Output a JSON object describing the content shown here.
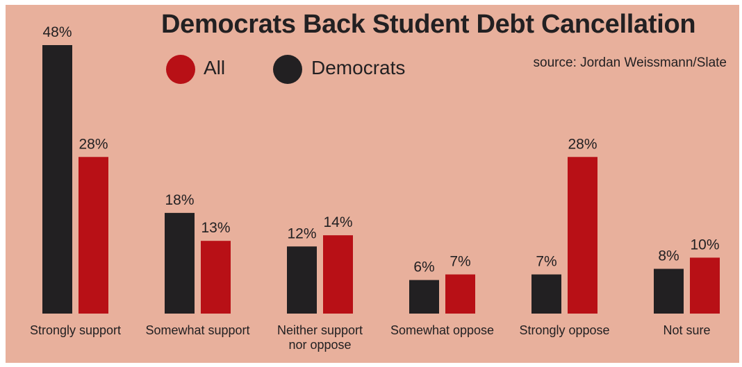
{
  "title": "Democrats Back Student Debt Cancellation",
  "source": "source: Jordan Weissmann/Slate",
  "legend": [
    {
      "label": "All",
      "color": "#b81016"
    },
    {
      "label": "Democrats",
      "color": "#222022"
    }
  ],
  "chart_data": {
    "type": "bar",
    "categories": [
      [
        "Strongly support"
      ],
      [
        "Somewhat support"
      ],
      [
        "Neither support",
        "nor oppose"
      ],
      [
        "Somewhat oppose"
      ],
      [
        "Strongly oppose"
      ],
      [
        "Not sure"
      ]
    ],
    "series": [
      {
        "name": "Democrats",
        "color": "#222022",
        "values": [
          48,
          18,
          12,
          6,
          7,
          8
        ],
        "labels": [
          "48%",
          "18%",
          "12%",
          "6%",
          "7%",
          "8%"
        ]
      },
      {
        "name": "All",
        "color": "#b81016",
        "values": [
          28,
          13,
          14,
          7,
          28,
          10
        ],
        "labels": [
          "28%",
          "13%",
          "14%",
          "7%",
          "28%",
          "10%"
        ]
      }
    ],
    "ylim": [
      0,
      48
    ],
    "grid": false,
    "legend_position": "top"
  }
}
